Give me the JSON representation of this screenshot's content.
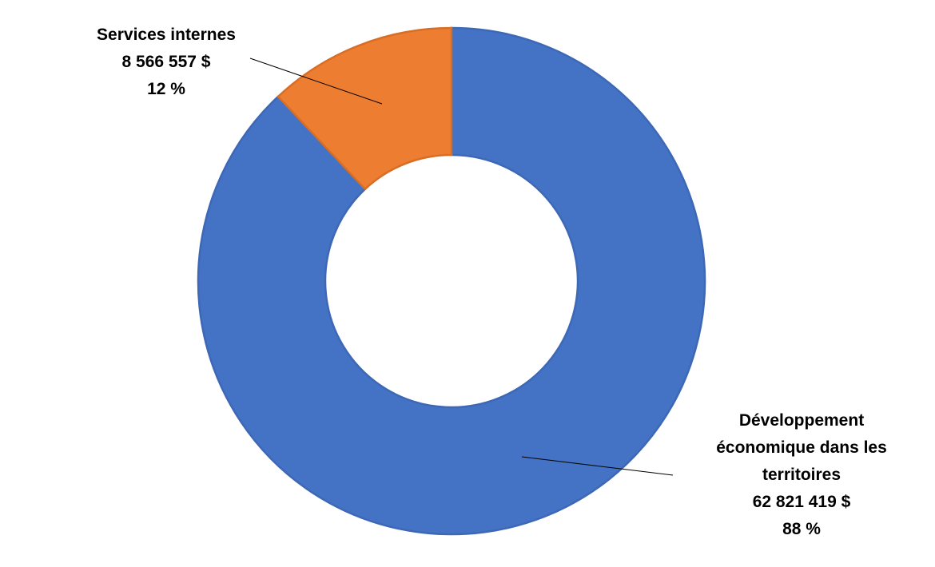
{
  "chart_data": {
    "type": "donut",
    "categories": [
      "Développement économique  dans les territoires",
      "Services internes"
    ],
    "values": [
      62821419,
      8566557
    ],
    "value_labels": [
      "62 821 419 $",
      "8 566 557 $"
    ],
    "percentages": [
      88,
      12
    ],
    "percentage_labels": [
      "88 %",
      "12 %"
    ],
    "colors": [
      "#4472c4",
      "#ed7d31"
    ]
  }
}
